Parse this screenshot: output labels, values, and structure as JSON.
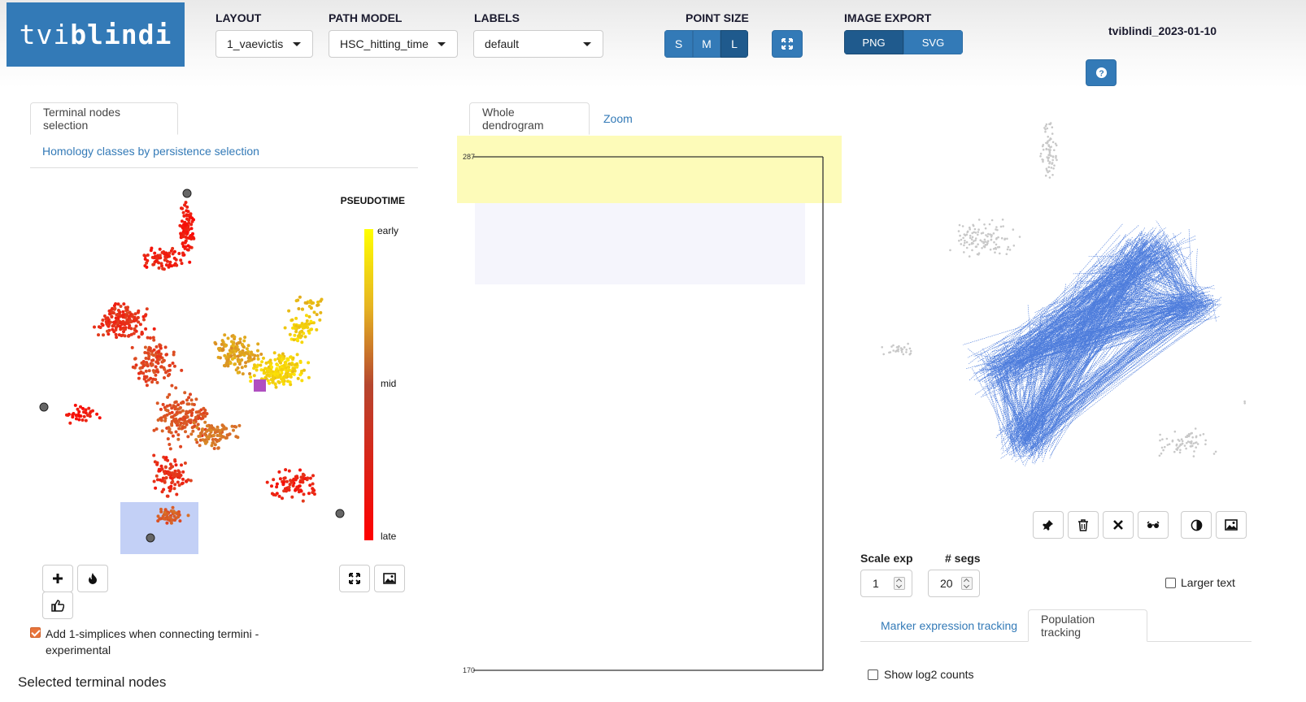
{
  "header": {
    "logo_light": "tvi",
    "logo_bold": "blindi",
    "layout_label": "LAYOUT",
    "layout_value": "1_vaevictis",
    "path_model_label": "PATH MODEL",
    "path_model_value": "HSC_hitting_time",
    "labels_label": "LABELS",
    "labels_value": "default",
    "point_size_label": "POINT SIZE",
    "point_sizes": [
      "S",
      "M",
      "L"
    ],
    "point_size_selected": "L",
    "image_export_label": "IMAGE EXPORT",
    "export_formats": [
      "PNG",
      "SVG"
    ],
    "export_selected": "PNG",
    "version": "tviblindi_2023-01-10",
    "fullscreen_icon": "expand-icon",
    "help_icon": "question-circle-icon"
  },
  "left": {
    "tabs": [
      {
        "label": "Terminal nodes selection",
        "active": true
      },
      {
        "label": "Homology classes by persistence selection",
        "active": false
      }
    ],
    "legend": {
      "title": "PSEUDOTIME",
      "early": "early",
      "mid": "mid",
      "late": "late",
      "gradient_top": "#ffff00",
      "gradient_mid": "#c0392b",
      "gradient_bottom": "#ff0000"
    },
    "tools": [
      {
        "name": "plus-icon",
        "glyph": "+"
      },
      {
        "name": "fire-icon",
        "glyph": "🔥"
      },
      {
        "name": "thumbs-up-icon",
        "glyph": "👍"
      },
      {
        "name": "expand-icon",
        "glyph": "⤢"
      },
      {
        "name": "image-icon",
        "glyph": "🖼"
      }
    ],
    "checkbox_label_line1": "Add 1-simplices when connecting termini -",
    "checkbox_label_line2": "experimental",
    "checkbox_checked": true,
    "selected_heading": "Selected terminal nodes"
  },
  "middle": {
    "tabs": [
      {
        "label": "Whole dendrogram",
        "active": true
      },
      {
        "label": "Zoom",
        "active": false
      }
    ],
    "dendrogram": {
      "top_label": "287",
      "bottom_label": "170",
      "highlight_color": "#fdfbb9"
    }
  },
  "right": {
    "tools": [
      "pin-icon",
      "trash-icon",
      "close-icon",
      "glasses-icon",
      "contrast-icon",
      "image-icon"
    ],
    "scale_exp_label": "Scale exp",
    "scale_exp_value": "1",
    "segs_label": "# segs",
    "segs_value": "20",
    "larger_text_label": "Larger text",
    "larger_text_checked": false,
    "tabs": [
      {
        "label": "Marker expression tracking",
        "active": false
      },
      {
        "label": "Population tracking",
        "active": true
      }
    ],
    "show_log2_label": "Show log2 counts",
    "show_log2_checked": false,
    "edge_color": "#2f66d6",
    "point_color": "#c8c8c8"
  }
}
